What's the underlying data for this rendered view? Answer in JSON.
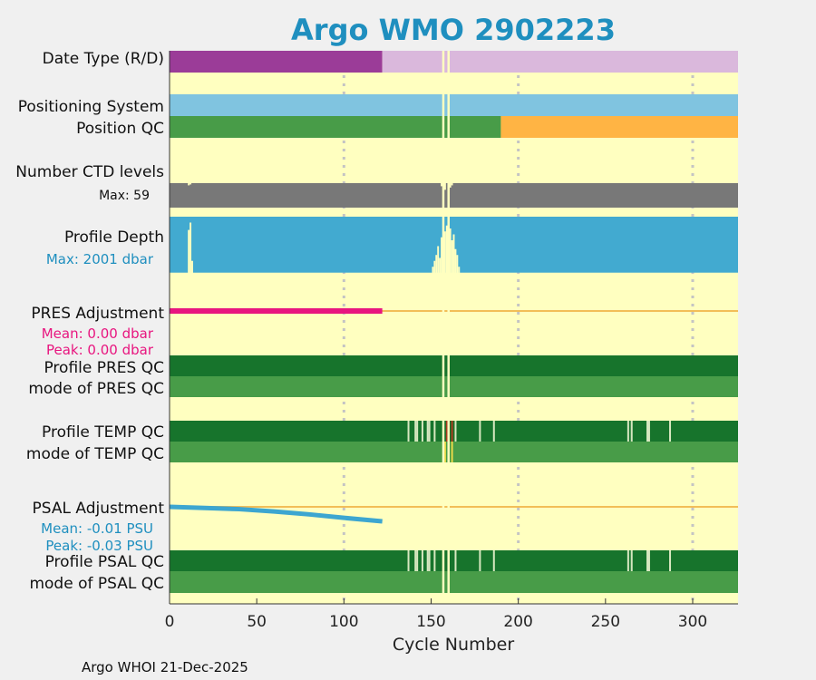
{
  "chart_data": {
    "type": "timeline-panel",
    "title": "Argo WMO 2902223",
    "xlabel": "Cycle Number",
    "xlim": [
      0,
      326
    ],
    "xticks": [
      0,
      50,
      100,
      150,
      200,
      250,
      300
    ],
    "gridlines_x": [
      100,
      200,
      300
    ],
    "footer": "Argo WHOI 21-Dec-2025",
    "gap_cycles": [
      157,
      160
    ],
    "colors": {
      "title": "#1f8fbf",
      "background": "#ffffc0",
      "data_type_R": "#9b3c98",
      "data_type_D": "#dab8dc",
      "positioning": "#80c4e0",
      "qc_good": "#489c48",
      "qc_warn": "#ffb444",
      "ctd": "#787878",
      "depth": "#42aad0",
      "pres_adj": "#e8157f",
      "adj_zero_line": "#f2be58",
      "qc_dark": "#17742c",
      "qc_light_flag": "#d7e8c0",
      "qc_bad": "#a83a1e",
      "qc_yellow": "#e8d848",
      "psal_adj": "#3da6d0",
      "annot_pink": "#e8157f",
      "annot_blue": "#1f8fbf"
    },
    "rows": {
      "data_type": {
        "label": "Date Type (R/D)",
        "segments": [
          {
            "from": 0,
            "to": 122,
            "value": "R"
          },
          {
            "from": 122,
            "to": 326,
            "value": "D"
          }
        ]
      },
      "positioning": {
        "label": "Positioning System"
      },
      "position_qc": {
        "label": "Position QC",
        "segments": [
          {
            "from": 0,
            "to": 190,
            "qc": "good"
          },
          {
            "from": 190,
            "to": 326,
            "qc": "warn"
          }
        ]
      },
      "ctd": {
        "label": "Number CTD levels",
        "max_label": "Max: 59",
        "max": 59,
        "typical": 55,
        "dips": [
          {
            "cycle": 11,
            "value": 50
          },
          {
            "cycle": 12,
            "value": 52
          },
          {
            "cycle": 156,
            "value": 48
          },
          {
            "cycle": 158,
            "value": 40
          },
          {
            "cycle": 161,
            "value": 45
          },
          {
            "cycle": 162,
            "value": 50
          }
        ]
      },
      "depth": {
        "label": "Profile Depth",
        "max_label": "Max: 2001 dbar",
        "max": 2001,
        "typical": 1900,
        "dips": [
          {
            "cycle": 11,
            "value": 450
          },
          {
            "cycle": 12,
            "value": 200
          },
          {
            "cycle": 13,
            "value": 1500
          },
          {
            "cycle": 151,
            "value": 1700
          },
          {
            "cycle": 152,
            "value": 1500
          },
          {
            "cycle": 153,
            "value": 1300
          },
          {
            "cycle": 154,
            "value": 1000
          },
          {
            "cycle": 155,
            "value": 1400
          },
          {
            "cycle": 156,
            "value": 700
          },
          {
            "cycle": 158,
            "value": 500
          },
          {
            "cycle": 159,
            "value": 300
          },
          {
            "cycle": 161,
            "value": 400
          },
          {
            "cycle": 162,
            "value": 800
          },
          {
            "cycle": 163,
            "value": 600
          },
          {
            "cycle": 164,
            "value": 1100
          },
          {
            "cycle": 165,
            "value": 1300
          },
          {
            "cycle": 166,
            "value": 1700
          }
        ]
      },
      "pres_adj": {
        "label": "PRES Adjustment",
        "mean_label": "Mean: 0.00 dbar",
        "peak_label": "Peak: 0.00 dbar",
        "x": [
          0,
          122
        ],
        "y": [
          0.0,
          0.0
        ]
      },
      "pres_qc": {
        "label": "Profile PRES QC"
      },
      "pres_mode": {
        "label": "mode of PRES QC"
      },
      "temp_qc": {
        "label": "Profile TEMP QC",
        "flags": [
          {
            "cycle": 137,
            "kind": "light"
          },
          {
            "cycle": 141,
            "kind": "light"
          },
          {
            "cycle": 142,
            "kind": "light"
          },
          {
            "cycle": 145,
            "kind": "light"
          },
          {
            "cycle": 148,
            "kind": "light"
          },
          {
            "cycle": 149,
            "kind": "light"
          },
          {
            "cycle": 152,
            "kind": "light"
          },
          {
            "cycle": 159,
            "kind": "bad"
          },
          {
            "cycle": 162,
            "kind": "bad"
          },
          {
            "cycle": 164,
            "kind": "light"
          },
          {
            "cycle": 178,
            "kind": "light"
          },
          {
            "cycle": 186,
            "kind": "light"
          },
          {
            "cycle": 263,
            "kind": "light"
          },
          {
            "cycle": 265,
            "kind": "light"
          },
          {
            "cycle": 274,
            "kind": "light"
          },
          {
            "cycle": 275,
            "kind": "light"
          },
          {
            "cycle": 287,
            "kind": "light"
          }
        ]
      },
      "temp_mode": {
        "label": "mode of TEMP QC",
        "flags": [
          {
            "cycle": 158,
            "kind": "yellow"
          },
          {
            "cycle": 162,
            "kind": "yellow"
          }
        ]
      },
      "psal_adj": {
        "label": "PSAL Adjustment",
        "mean_label": "Mean: -0.01 PSU",
        "peak_label": "Peak: -0.03 PSU",
        "x": [
          0,
          20,
          40,
          60,
          80,
          100,
          122
        ],
        "y": [
          0.0,
          -0.002,
          -0.004,
          -0.008,
          -0.013,
          -0.019,
          -0.025
        ],
        "ylim": [
          -0.03,
          0.0
        ]
      },
      "psal_qc": {
        "label": "Profile PSAL QC",
        "flags": [
          {
            "cycle": 137,
            "kind": "light"
          },
          {
            "cycle": 141,
            "kind": "light"
          },
          {
            "cycle": 142,
            "kind": "light"
          },
          {
            "cycle": 145,
            "kind": "light"
          },
          {
            "cycle": 148,
            "kind": "light"
          },
          {
            "cycle": 149,
            "kind": "light"
          },
          {
            "cycle": 152,
            "kind": "light"
          },
          {
            "cycle": 164,
            "kind": "light"
          },
          {
            "cycle": 178,
            "kind": "light"
          },
          {
            "cycle": 186,
            "kind": "light"
          },
          {
            "cycle": 263,
            "kind": "light"
          },
          {
            "cycle": 265,
            "kind": "light"
          },
          {
            "cycle": 274,
            "kind": "light"
          },
          {
            "cycle": 275,
            "kind": "light"
          },
          {
            "cycle": 287,
            "kind": "light"
          }
        ]
      },
      "psal_mode": {
        "label": "mode of PSAL QC"
      }
    }
  }
}
